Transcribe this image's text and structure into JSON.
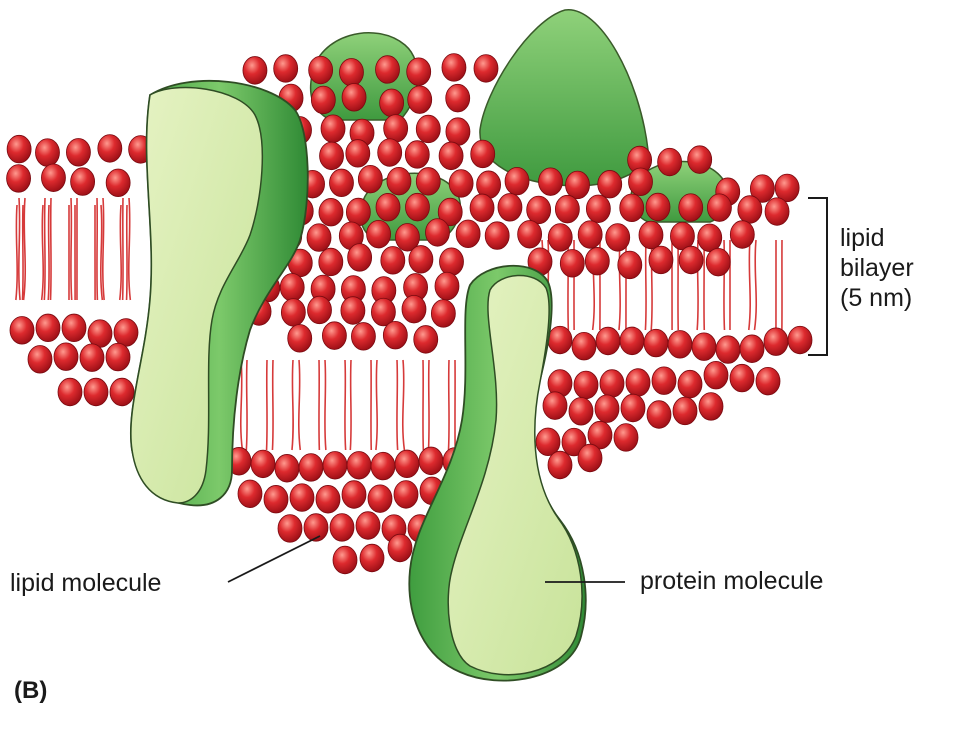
{
  "labels": {
    "bilayer": [
      "lipid",
      "bilayer",
      "(5 nm)"
    ],
    "lipid_molecule": "lipid molecule",
    "protein_molecule": "protein molecule",
    "panel": "(B)"
  },
  "colors": {
    "lipid_head": "#d8232a",
    "lipid_head_highlight": "#ff8a80",
    "lipid_tail": "#d63a3a",
    "protein_dark": "#5cb85c",
    "protein_light": "#d9ecb0",
    "outline": "#3a5a2a"
  }
}
